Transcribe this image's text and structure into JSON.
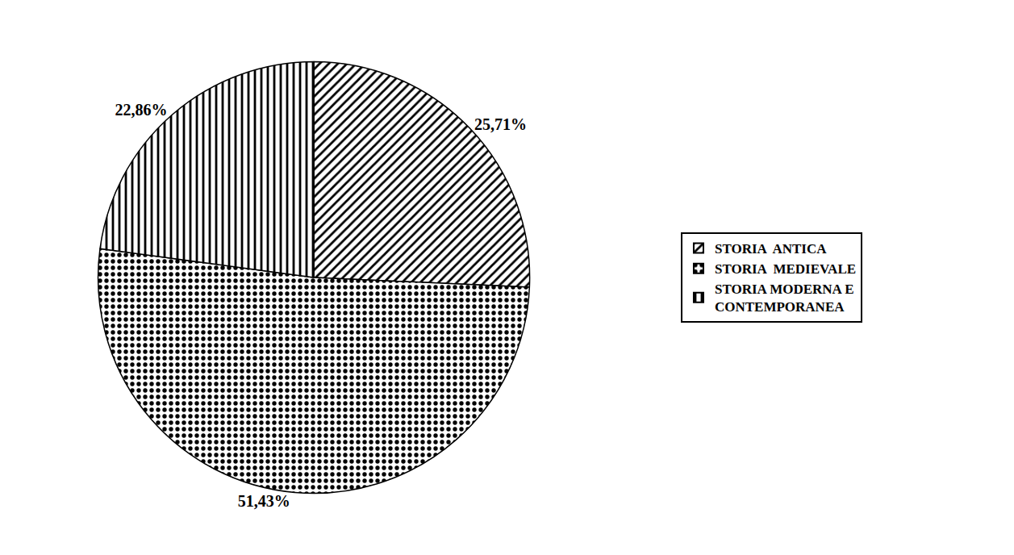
{
  "chart_data": {
    "type": "pie",
    "categories": [
      "STORIA  ANTICA",
      "STORIA  MEDIEVALE",
      "STORIA MODERNA E\nCONTEMPORANEA"
    ],
    "values": [
      25.71,
      51.43,
      22.86
    ],
    "value_labels": [
      "25,71%",
      "51,43%",
      "22,86%"
    ],
    "data_labels": true,
    "colors": [
      "#ffffff",
      "#ffffff",
      "#ffffff"
    ],
    "legend": "right"
  }
}
